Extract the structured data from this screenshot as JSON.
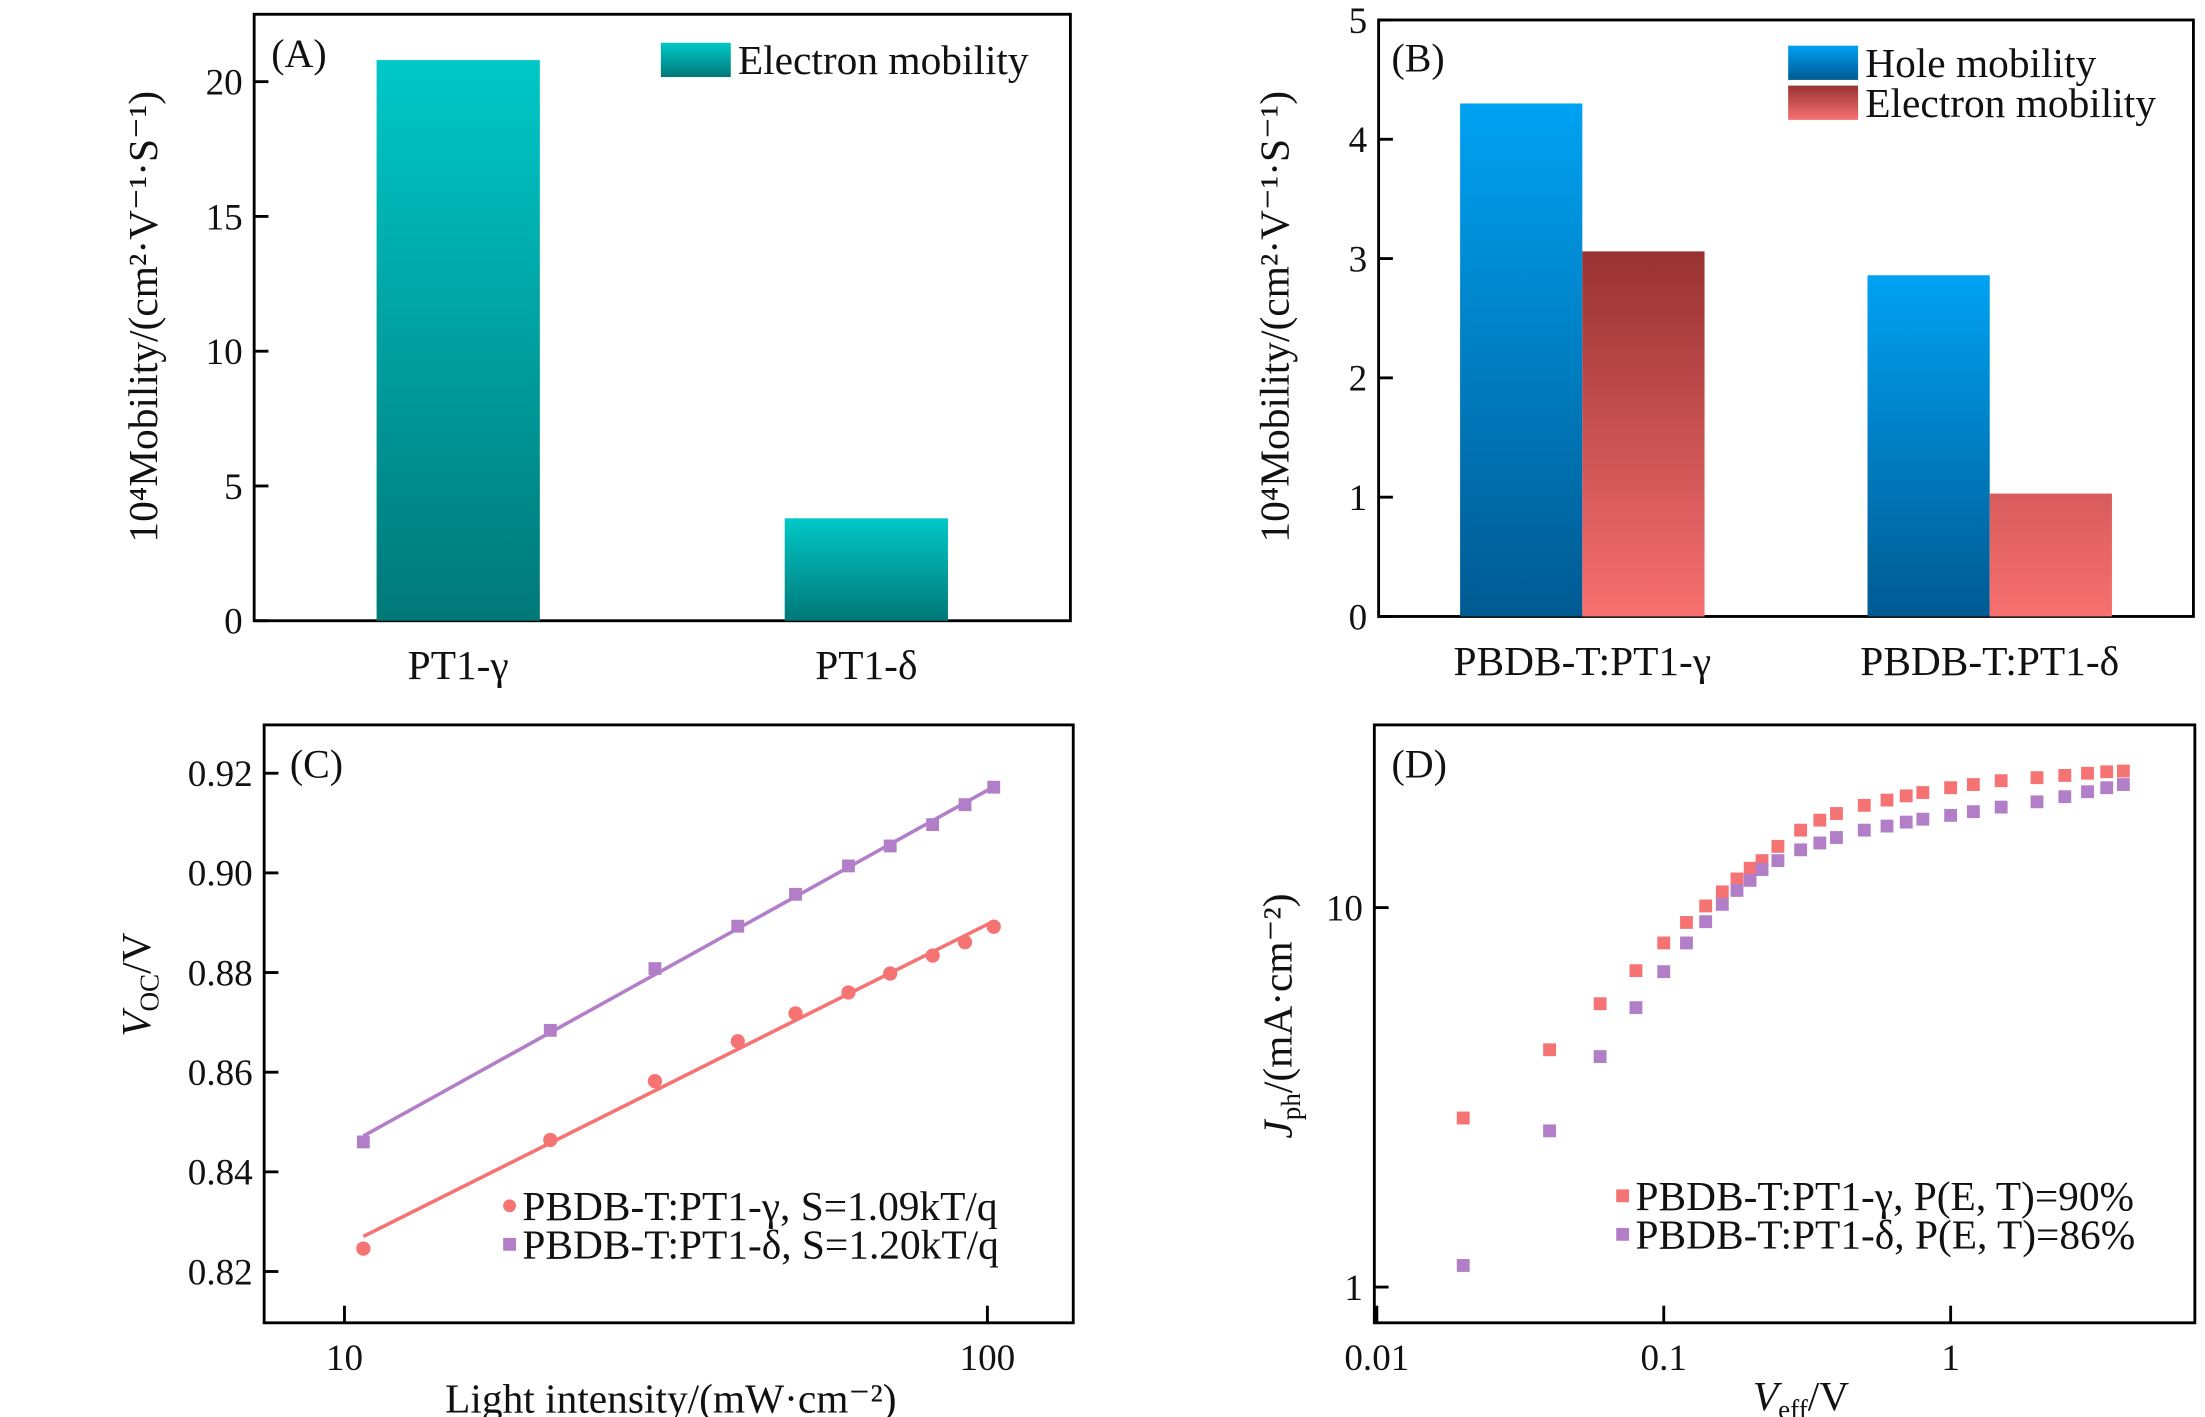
{
  "chart_data": [
    {
      "type": "bar",
      "panel_label": "(A)",
      "categories": [
        "PT1-γ",
        "PT1-δ"
      ],
      "series": [
        {
          "name": "Electron mobility",
          "values": [
            20.8,
            3.8
          ],
          "color_top": "#00c8c8",
          "color_bottom": "#007878"
        }
      ],
      "xlabel": "",
      "ylabel": "10⁴Mobility/(cm²·V⁻¹·S⁻¹)",
      "ylim": [
        0,
        22.5
      ],
      "yticks": [
        0,
        5,
        10,
        15,
        20
      ],
      "ytick_labels": [
        "0",
        "5",
        "10",
        "15",
        "20"
      ],
      "legend": "top-right",
      "grid": false
    },
    {
      "type": "bar",
      "panel_label": "(B)",
      "categories": [
        "PBDB-T:PT1-γ",
        "PBDB-T:PT1-δ"
      ],
      "series": [
        {
          "name": "Hole mobility",
          "values": [
            4.3,
            2.86
          ],
          "color_top": "#00a2f2",
          "color_bottom": "#005a92"
        },
        {
          "name": "Electron mobility",
          "values": [
            3.06,
            1.03
          ],
          "color_top": "#983232",
          "color_bottom": "#f87070"
        }
      ],
      "xlabel": "",
      "ylabel": "10⁴Mobility/(cm²·V⁻¹·S⁻¹)",
      "ylim": [
        0,
        5
      ],
      "yticks": [
        0,
        1,
        2,
        3,
        4,
        5
      ],
      "ytick_labels": [
        "0",
        "1",
        "2",
        "3",
        "4",
        "5"
      ],
      "legend": "top-right",
      "grid": false
    },
    {
      "type": "scatter",
      "panel_label": "(C)",
      "x": [
        10.7,
        20.9,
        30.4,
        40.9,
        50.3,
        60.8,
        70.6,
        82.2,
        92.3,
        102.3
      ],
      "series": [
        {
          "name": "PBDB-T:PT1-γ,  S=1.09kT/q",
          "marker": "circle",
          "color": "#f57373",
          "fit": "linear-log",
          "values": [
            0.8246,
            0.8464,
            0.8582,
            0.8662,
            0.8718,
            0.876,
            0.8798,
            0.8834,
            0.8861,
            0.8892
          ]
        },
        {
          "name": "PBDB-T:PT1-δ,  S=1.20kT/q",
          "marker": "square",
          "color": "#b27ec8",
          "fit": "linear-log",
          "values": [
            0.846,
            0.8684,
            0.8808,
            0.8893,
            0.8957,
            0.9014,
            0.9054,
            0.9097,
            0.9137,
            0.9172
          ]
        }
      ],
      "xlabel": "Light intensity/(mW·cm⁻²)",
      "ylabel": {
        "main": "V",
        "sub": "OC",
        "rest": "/V"
      },
      "xscale": "log",
      "xlim": [
        7.5,
        136
      ],
      "xticks": [
        10,
        100
      ],
      "xtick_labels": [
        "10",
        "100"
      ],
      "ylim": [
        0.8097,
        0.9297
      ],
      "yticks": [
        0.82,
        0.84,
        0.86,
        0.88,
        0.9,
        0.92
      ],
      "ytick_labels": [
        "0.82",
        "0.84",
        "0.86",
        "0.88",
        "0.90",
        "0.92"
      ],
      "legend": "bottom-right",
      "grid": false
    },
    {
      "type": "scatter",
      "panel_label": "(D)",
      "x": [
        0.02,
        0.04,
        0.06,
        0.08,
        0.1,
        0.12,
        0.14,
        0.16,
        0.18,
        0.2,
        0.22,
        0.25,
        0.3,
        0.35,
        0.4,
        0.5,
        0.6,
        0.7,
        0.8,
        1.0,
        1.2,
        1.5,
        2.0,
        2.5,
        3.0,
        3.5,
        4.0
      ],
      "series": [
        {
          "name": "PBDB-T:PT1-γ,  P(E, T)=90%",
          "marker": "square",
          "color": "#f57373",
          "values": [
            2.79,
            4.22,
            5.58,
            6.82,
            8.07,
            9.14,
            10.1,
            11.0,
            11.9,
            12.7,
            13.3,
            14.5,
            16.0,
            17.0,
            17.7,
            18.6,
            19.2,
            19.7,
            20.1,
            20.7,
            21.1,
            21.6,
            22.0,
            22.3,
            22.6,
            22.8,
            22.9
          ]
        },
        {
          "name": "PBDB-T:PT1-δ,  P(E, T)=86%",
          "marker": "square",
          "color": "#b27ec8",
          "values": [
            1.14,
            2.58,
            4.05,
            5.45,
            6.78,
            8.07,
            9.18,
            10.2,
            11.1,
            11.8,
            12.6,
            13.3,
            14.2,
            14.8,
            15.3,
            16.0,
            16.4,
            16.8,
            17.1,
            17.5,
            17.9,
            18.4,
            19.0,
            19.6,
            20.2,
            20.7,
            21.1
          ]
        }
      ],
      "xlabel": {
        "main": "V",
        "sub": "eff",
        "rest": "/V"
      },
      "ylabel": {
        "main": "J",
        "sub": "ph",
        "rest": "/(mA·cm⁻²)"
      },
      "xscale": "log",
      "yscale": "log",
      "xlim": [
        0.0098,
        7.1
      ],
      "xticks": [
        0.01,
        0.1,
        1
      ],
      "xtick_labels": [
        "0.01",
        "0.1",
        "1"
      ],
      "ylim": [
        0.805,
        30.3
      ],
      "yticks": [
        1,
        10
      ],
      "ytick_labels": [
        "1",
        "10"
      ],
      "legend": "bottom-right",
      "grid": false
    }
  ]
}
